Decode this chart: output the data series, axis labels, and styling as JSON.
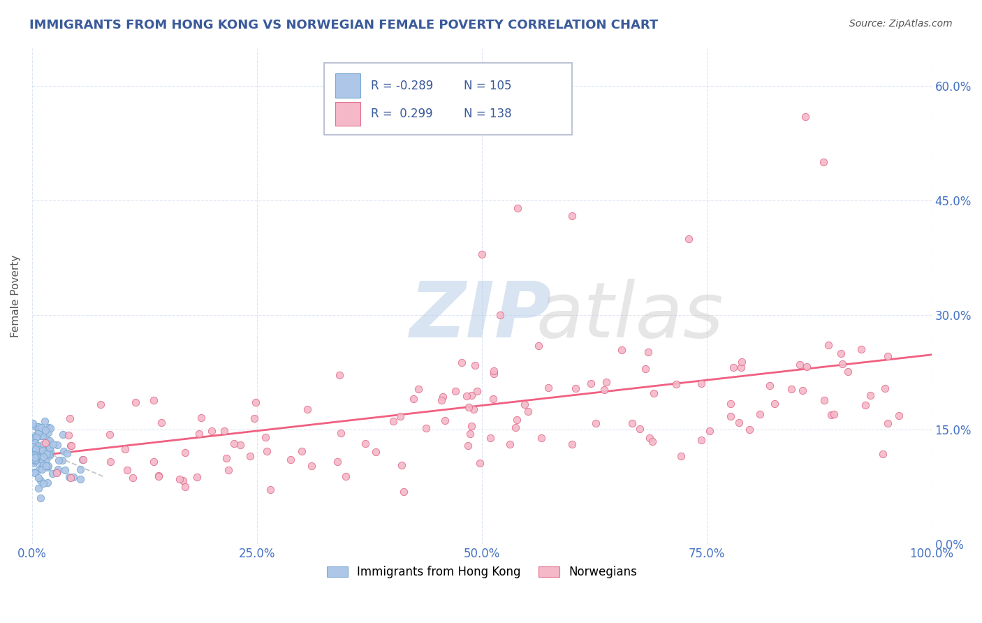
{
  "title": "IMMIGRANTS FROM HONG KONG VS NORWEGIAN FEMALE POVERTY CORRELATION CHART",
  "source_text": "Source: ZipAtlas.com",
  "ylabel": "Female Poverty",
  "watermark_zip": "ZIP",
  "watermark_atlas": "atlas",
  "legend_labels": [
    "Immigrants from Hong Kong",
    "Norwegians"
  ],
  "legend_R": [
    -0.289,
    0.299
  ],
  "legend_N": [
    105,
    138
  ],
  "blue_color": "#aec6e8",
  "pink_color": "#f5b8c8",
  "blue_edge": "#7aaacf",
  "pink_edge": "#e07090",
  "trend_blue_color": "#c8c8c8",
  "trend_pink_color": "#f06080",
  "title_color": "#3a5a9a",
  "legend_text_color": "#3a5a9a",
  "tick_color": "#4472c4",
  "ylabel_color": "#555555",
  "source_color": "#555555",
  "xmin": 0.0,
  "xmax": 1.0,
  "ymin": 0.0,
  "ymax": 0.65,
  "yticks": [
    0.0,
    0.15,
    0.3,
    0.45,
    0.6
  ],
  "ytick_labels": [
    "0.0%",
    "15.0%",
    "30.0%",
    "45.0%",
    "60.0%"
  ],
  "xticks": [
    0.0,
    0.25,
    0.5,
    0.75,
    1.0
  ],
  "xtick_labels": [
    "0.0%",
    "25.0%",
    "50.0%",
    "75.0%",
    "100.0%"
  ]
}
